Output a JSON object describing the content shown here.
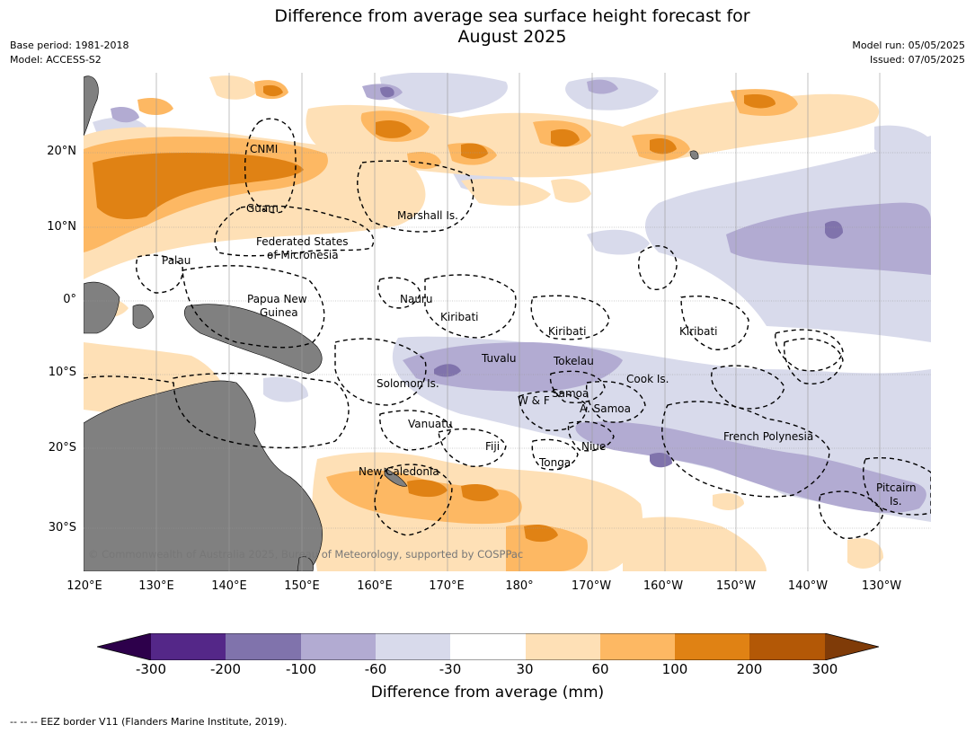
{
  "title": {
    "line1": "Difference from average sea surface height forecast for",
    "line2": "August 2025"
  },
  "meta_left": {
    "base_period": "Base period: 1981-2018",
    "model": "Model: ACCESS-S2"
  },
  "meta_right": {
    "model_run": "Model run: 05/05/2025",
    "issued": "Issued: 07/05/2025"
  },
  "map": {
    "lat_ticks": [
      "20°N",
      "10°N",
      "0°",
      "10°S",
      "20°S",
      "30°S"
    ],
    "lon_ticks": [
      "120°E",
      "130°E",
      "140°E",
      "150°E",
      "160°E",
      "170°E",
      "180°",
      "170°W",
      "160°W",
      "150°W",
      "140°W",
      "130°W"
    ],
    "region_labels": {
      "cnmi": "CNMI",
      "guam": "Guam",
      "marshall": "Marshall Is.",
      "fsm_1": "Federated States",
      "fsm_2": "of Micronesia",
      "palau": "Palau",
      "png_1": "Papua New",
      "png_2": "Guinea",
      "nauru": "Nauru",
      "kiribati_west": "Kiribati",
      "kiribati_central": "Kiribati",
      "kiribati_east": "Kiribati",
      "tuvalu": "Tuvalu",
      "tokelau": "Tokelau",
      "solomon": "Solomon Is.",
      "cook": "Cook Is.",
      "wf": "W & F",
      "samoa": "Samoa",
      "asamoa": "A. Samoa",
      "vanuatu": "Vanuatu",
      "fiji": "Fiji",
      "niue": "Niue",
      "tonga": "Tonga",
      "french_polynesia": "French Polynesia",
      "new_caledonia": "New Caledonia",
      "pitcairn_1": "Pitcairn",
      "pitcairn_2": "Is."
    },
    "copyright": "© Commonwealth of Australia 2025, Bureau of Meteorology, supported by COSPPac"
  },
  "colorbar": {
    "label": "Difference from average (mm)",
    "ticks": [
      "-300",
      "-200",
      "-100",
      "-60",
      "-30",
      "30",
      "60",
      "100",
      "200",
      "300"
    ],
    "colors": [
      "#2d004b",
      "#542788",
      "#8073ac",
      "#b2abd2",
      "#d8daeb",
      "#ffffff",
      "#fee0b6",
      "#fdb863",
      "#e08214",
      "#b35806",
      "#7f3b08"
    ]
  },
  "footnote": "--  --  -- EEZ border V11 (Flanders Marine Institute, 2019)."
}
